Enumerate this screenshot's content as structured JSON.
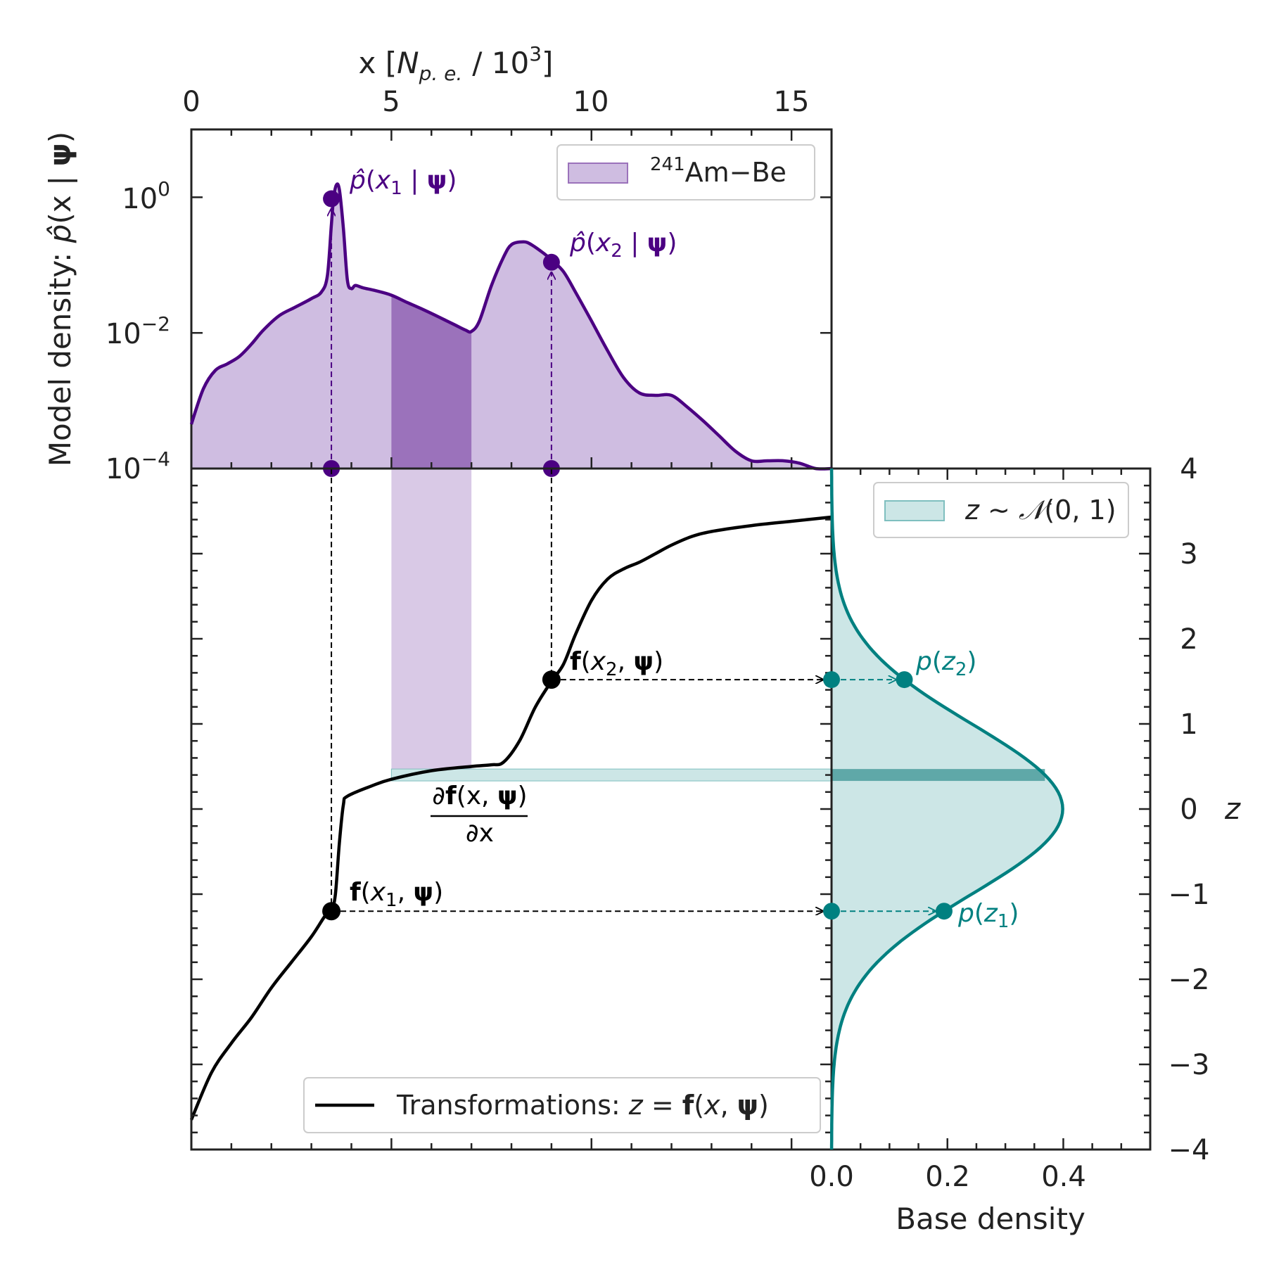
{
  "chart_data": [
    {
      "id": "model-density",
      "type": "area",
      "x_axis": {
        "label": "x [N_p.e. / 10^3]",
        "lim": [
          0,
          16
        ],
        "ticks": [
          0,
          5,
          10,
          15
        ],
        "position": "top"
      },
      "y_axis": {
        "label": "Model density: p̂(x | ψ)",
        "scale": "log",
        "lim": [
          0.0001,
          10
        ],
        "ticks": [
          "10^0",
          "10^-2",
          "10^-4"
        ]
      },
      "legend": {
        "entries": [
          "241Am−Be"
        ],
        "placement": "top-right"
      },
      "color": "#4b0082",
      "fill_color": "#cfbde1",
      "series": [
        {
          "name": "241Am−Be",
          "x": [
            0,
            0.3,
            0.6,
            0.9,
            1.2,
            1.5,
            1.8,
            2.2,
            2.6,
            3.0,
            3.25,
            3.4,
            3.5,
            3.55,
            3.62,
            3.7,
            3.8,
            3.9,
            4.0,
            4.1,
            4.3,
            4.6,
            5.0,
            5.4,
            5.8,
            6.2,
            6.6,
            6.85,
            7.0,
            7.2,
            7.5,
            7.8,
            8.0,
            8.3,
            8.5,
            8.8,
            9.0,
            9.3,
            9.6,
            10.0,
            10.4,
            10.8,
            11.2,
            11.6,
            12.0,
            12.4,
            12.8,
            13.2,
            13.6,
            14.0,
            14.4,
            14.8,
            15.2,
            15.6,
            16.0
          ],
          "y": [
            0.00045,
            0.0015,
            0.0028,
            0.0035,
            0.0045,
            0.0068,
            0.011,
            0.018,
            0.024,
            0.032,
            0.04,
            0.07,
            0.4,
            0.9,
            1.5,
            1.3,
            0.35,
            0.06,
            0.045,
            0.05,
            0.046,
            0.042,
            0.036,
            0.028,
            0.022,
            0.017,
            0.013,
            0.011,
            0.0105,
            0.015,
            0.05,
            0.13,
            0.2,
            0.22,
            0.2,
            0.15,
            0.12,
            0.08,
            0.04,
            0.015,
            0.0055,
            0.0022,
            0.0013,
            0.0012,
            0.0012,
            0.0008,
            0.0005,
            0.0003,
            0.00018,
            0.00013,
            0.00013,
            0.00013,
            0.00012,
            0.0001,
            0.0001
          ]
        }
      ],
      "highlight_band_x": [
        5.0,
        7.0
      ],
      "markers": [
        {
          "label": "p̂(x1 | ψ)",
          "x": 3.5,
          "y": 0.95
        },
        {
          "label": "p̂(x2 | ψ)",
          "x": 9.0,
          "y": 0.11
        }
      ]
    },
    {
      "id": "transformation",
      "type": "line",
      "x_axis": {
        "lim": [
          0,
          16
        ]
      },
      "y_axis": {
        "lim": [
          -4,
          4
        ]
      },
      "legend": {
        "entries": [
          "Transformations: z = f(x, ψ)"
        ],
        "placement": "bottom-right"
      },
      "color": "#000000",
      "series": [
        {
          "name": "Transformations: z = f(x, ψ)",
          "x": [
            0.0,
            0.5,
            1.0,
            1.5,
            2.0,
            2.5,
            3.0,
            3.35,
            3.5,
            3.6,
            3.7,
            3.8,
            3.9,
            4.5,
            5.0,
            6.0,
            7.0,
            7.5,
            7.8,
            8.2,
            8.6,
            9.0,
            9.3,
            9.6,
            10.0,
            10.4,
            10.8,
            11.2,
            11.6,
            12.0,
            12.5,
            13.0,
            14.0,
            15.0,
            16.0
          ],
          "y": [
            -3.65,
            -3.1,
            -2.75,
            -2.45,
            -2.1,
            -1.8,
            -1.5,
            -1.25,
            -1.2,
            -1.0,
            -0.4,
            0.05,
            0.15,
            0.27,
            0.35,
            0.45,
            0.5,
            0.52,
            0.55,
            0.8,
            1.2,
            1.5,
            1.7,
            2.05,
            2.45,
            2.7,
            2.82,
            2.9,
            3.0,
            3.1,
            3.2,
            3.26,
            3.33,
            3.38,
            3.43
          ]
        }
      ],
      "points": [
        {
          "label": "f(x1, ψ)",
          "x": 3.5,
          "z": -1.2
        },
        {
          "label": "f(x2, ψ)",
          "x": 9.0,
          "z": 1.52
        }
      ],
      "annotation": "∂f(x, ψ) / ∂x"
    },
    {
      "id": "base-density",
      "type": "area",
      "x_axis": {
        "label": "Base density",
        "lim": [
          0,
          0.55
        ],
        "ticks": [
          0.0,
          0.2,
          0.4
        ]
      },
      "y_axis": {
        "label": "z",
        "lim": [
          -4,
          4
        ],
        "ticks": [
          4,
          3,
          2,
          1,
          0,
          -1,
          -2,
          -3,
          -4
        ],
        "position": "right"
      },
      "legend": {
        "entries": [
          "z ~ 𝒩(0, 1)"
        ],
        "placement": "top-right"
      },
      "color": "#008080",
      "fill_color": "#cce6e6",
      "distribution": {
        "mean": 0,
        "std": 1
      },
      "highlight_band_z": [
        0.33,
        0.47
      ],
      "markers": [
        {
          "label": "p(z1)",
          "z": -1.2
        },
        {
          "label": "p(z2)",
          "z": 1.52
        }
      ]
    }
  ],
  "text": {
    "top_xlabel_main": "x [",
    "top_xlabel_n": "N",
    "top_xlabel_sub": "p. e.",
    "top_xlabel_rest": "/ 10",
    "top_xlabel_sup": "3",
    "top_xlabel_end": "]",
    "ylabel_main": "Model density: ",
    "ylabel_p": "p̂",
    "ylabel_args": "(x | ",
    "ylabel_psi": "ψ",
    "ylabel_close": ")",
    "ytick_base": "10",
    "ytick_exp_0": "0",
    "ytick_exp_2": "−2",
    "ytick_exp_4": "−4",
    "legend_top_sup": "241",
    "legend_top_name": "Am−Be",
    "phat": "p̂",
    "x_var": "x",
    "sub1": "1",
    "sub2": "2",
    "bar": " | ",
    "psi": "ψ",
    "open": "(",
    "close": ")",
    "f": "f",
    "comma": ", ",
    "p": "p",
    "z_var": "z",
    "deriv_num_a": "∂",
    "deriv_num_f": "f",
    "deriv_num_b": "(x, ",
    "deriv_den": "∂x",
    "legend_trans_a": "Transformations: ",
    "legend_trans_z": "z",
    "legend_trans_eq": " = ",
    "legend_base_z": "z",
    "legend_base_sim": " ∼ ",
    "legend_base_n": "𝒩",
    "legend_base_args": "(0, 1)",
    "base_xlabel": "Base density",
    "z_label": "z",
    "x_ticks": [
      "0",
      "5",
      "10",
      "15"
    ],
    "base_ticks": [
      "0.0",
      "0.2",
      "0.4"
    ],
    "z_ticks": [
      "4",
      "3",
      "2",
      "1",
      "0",
      "−1",
      "−2",
      "−3",
      "−4"
    ]
  }
}
